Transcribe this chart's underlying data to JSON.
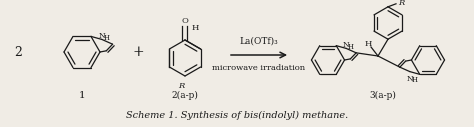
{
  "background_color": "#f0ece5",
  "figure_width": 4.74,
  "figure_height": 1.27,
  "dpi": 100,
  "caption": "Scheme 1. Synthesis of bis(indolyl) methane.",
  "caption_fontsize": 7.0,
  "caption_style": "italic",
  "reagent_label": "La(OTf)₃",
  "condition_label": "microwave irradiation",
  "label_1": "1",
  "label_2": "2(a-p)",
  "label_3": "3(a-p)",
  "plus_sign": "+",
  "stoich": "2",
  "text_color": "#1a1a1a",
  "lw": 0.9
}
